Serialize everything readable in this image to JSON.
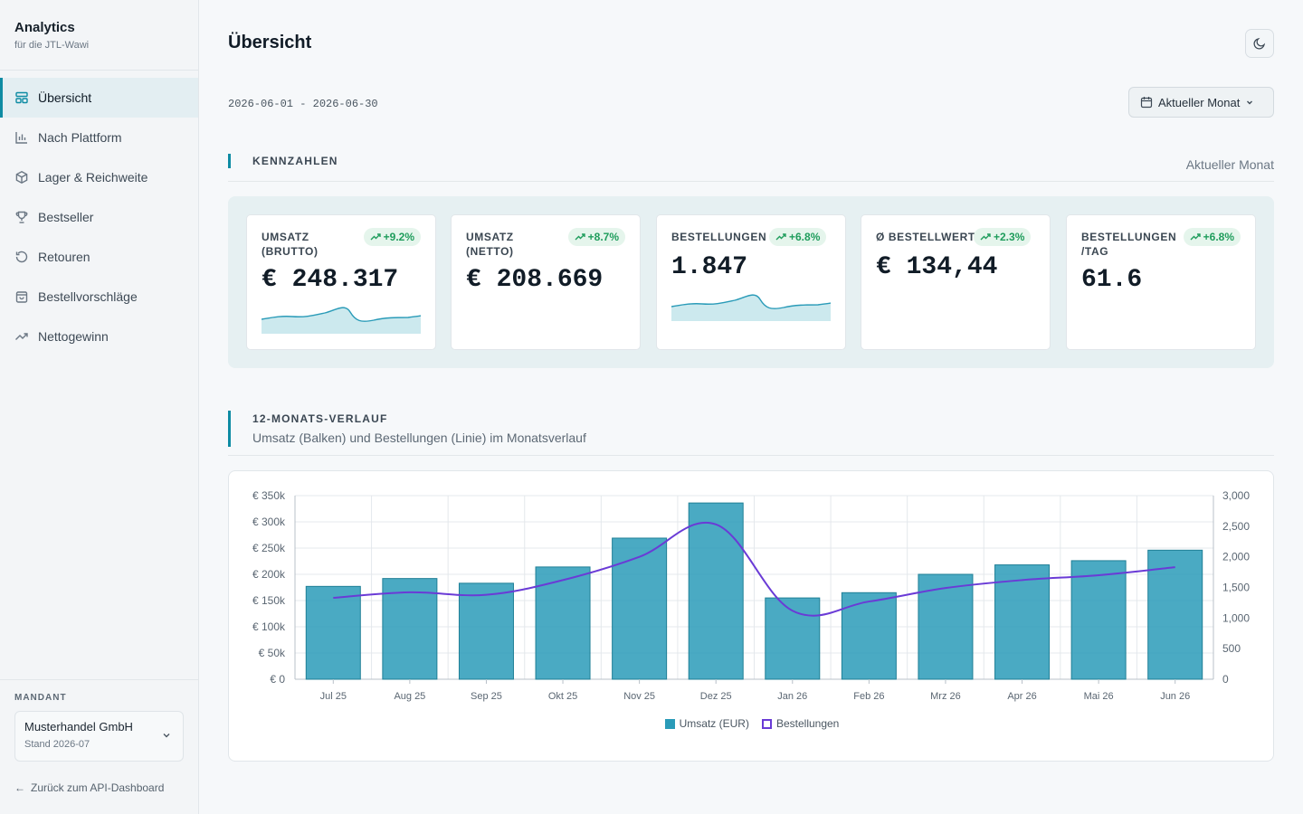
{
  "brand": {
    "title": "Analytics",
    "subtitle": "für die JTL-Wawi"
  },
  "nav": [
    {
      "label": "Übersicht",
      "icon": "dashboard-icon",
      "active": true
    },
    {
      "label": "Nach Plattform",
      "icon": "bar-chart-icon",
      "active": false
    },
    {
      "label": "Lager & Reichweite",
      "icon": "box-icon",
      "active": false
    },
    {
      "label": "Bestseller",
      "icon": "trophy-icon",
      "active": false
    },
    {
      "label": "Retouren",
      "icon": "return-icon",
      "active": false
    },
    {
      "label": "Bestellvorschläge",
      "icon": "shopping-bag-icon",
      "active": false
    },
    {
      "label": "Nettogewinn",
      "icon": "trend-up-icon",
      "active": false
    }
  ],
  "mandant": {
    "label": "MANDANT",
    "name": "Musterhandel GmbH",
    "stand": "Stand 2026-07"
  },
  "back_link": "Zurück zum API-Dashboard",
  "page": {
    "title": "Übersicht",
    "date_range": "2026-06-01 - 2026-06-30",
    "period_button": "Aktueller Monat"
  },
  "kennzahlen": {
    "title": "KENNZAHLEN",
    "right_label": "Aktueller Monat",
    "cards": [
      {
        "label": "UMSATZ (BRUTTO)",
        "badge": "+9.2%",
        "value": "€ 248.317",
        "sparkline": true
      },
      {
        "label": "UMSATZ (NETTO)",
        "badge": "+8.7%",
        "value": "€ 208.669",
        "sparkline": false
      },
      {
        "label": "BESTELLUNGEN",
        "badge": "+6.8%",
        "value": "1.847",
        "sparkline": true
      },
      {
        "label": "Ø BESTELLWERT",
        "badge": "+2.3%",
        "value": "€ 134,44",
        "sparkline": false
      },
      {
        "label": "BESTELLUNGEN /TAG",
        "badge": "+6.8%",
        "value": "61.6",
        "sparkline": false
      }
    ],
    "badge_color": "#1f9d5c",
    "sparkline_color": "#2a9bb8"
  },
  "verlauf": {
    "title": "12-MONATS-VERLAUF",
    "subtitle": "Umsatz (Balken) und Bestellungen (Linie) im Monatsverlauf"
  },
  "chart_data": {
    "type": "bar",
    "categories": [
      "Jul 25",
      "Aug 25",
      "Sep 25",
      "Okt 25",
      "Nov 25",
      "Dez 25",
      "Jan 26",
      "Feb 26",
      "Mrz 26",
      "Apr 26",
      "Mai 26",
      "Jun 26"
    ],
    "series": [
      {
        "name": "Umsatz (EUR)",
        "type": "bar",
        "axis": "left",
        "color": "#2a9bb8",
        "values": [
          177000,
          192000,
          183000,
          214000,
          269000,
          336000,
          155000,
          165000,
          200000,
          218000,
          226000,
          246000
        ]
      },
      {
        "name": "Bestellungen",
        "type": "line",
        "axis": "right",
        "color": "#6a3bd6",
        "values": [
          1330,
          1420,
          1380,
          1620,
          2000,
          2530,
          1120,
          1270,
          1490,
          1620,
          1700,
          1830
        ]
      }
    ],
    "y_left": {
      "ticks": [
        "€ 0",
        "€ 50k",
        "€ 100k",
        "€ 150k",
        "€ 200k",
        "€ 250k",
        "€ 300k",
        "€ 350k"
      ],
      "ylim": [
        0,
        350000
      ]
    },
    "y_right": {
      "ticks": [
        "0",
        "500",
        "1,000",
        "1,500",
        "2,000",
        "2,500",
        "3,000"
      ],
      "ylim": [
        0,
        3000
      ]
    },
    "grid": true,
    "legend": "bottom"
  }
}
